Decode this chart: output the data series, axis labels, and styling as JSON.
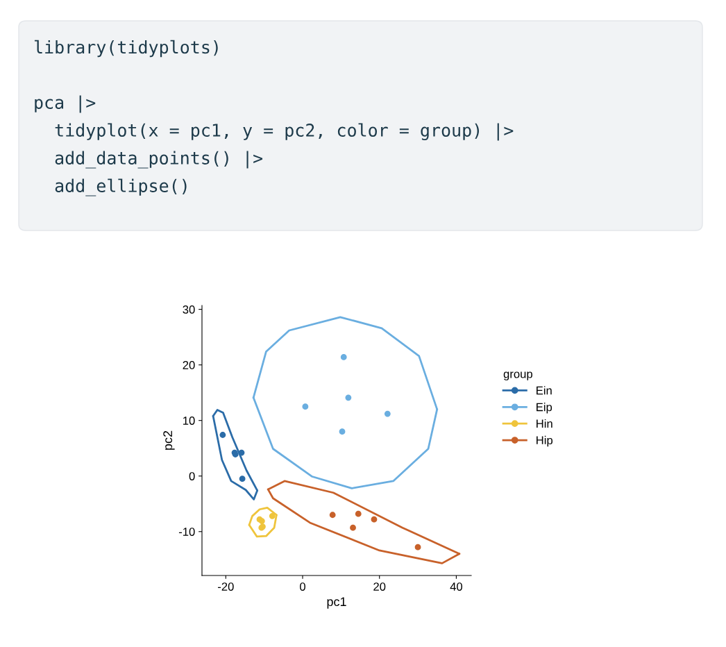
{
  "chart_data": {
    "type": "scatter",
    "xlabel": "pc1",
    "ylabel": "pc2",
    "legend_title": "group",
    "legend": "right",
    "grid": false,
    "marker": "circle",
    "xlim": [
      -26.2,
      43.9
    ],
    "ylim": [
      -17.9,
      30.7
    ],
    "xticks": [
      -20,
      0,
      20,
      40
    ],
    "yticks": [
      -10,
      0,
      10,
      20,
      30
    ],
    "annotations": [
      "library(tidyplots)",
      "pca |>",
      "  tidyplot(x = pc1, y = pc2, color = group) |>",
      "  add_data_points() |>",
      "  add_ellipse()"
    ],
    "series": [
      {
        "name": "Ein",
        "color": "#2b6ca8",
        "x": [
          -20.8,
          -17.7,
          -17.5,
          -15.9,
          -15.7
        ],
        "values": [
          7.4,
          4.2,
          3.9,
          4.2,
          -0.5
        ]
      },
      {
        "name": "Eip",
        "color": "#6aaee0",
        "x": [
          10.7,
          0.7,
          11.9,
          22.1,
          10.3
        ],
        "values": [
          21.4,
          12.5,
          14.1,
          11.2,
          8.0
        ]
      },
      {
        "name": "Hin",
        "color": "#efc43c",
        "x": [
          -11.2,
          -10.6,
          -7.9,
          -10.4,
          -10.7
        ],
        "values": [
          -7.8,
          -8.1,
          -7.2,
          -9.1,
          -9.3
        ]
      },
      {
        "name": "Hip",
        "color": "#c8612a",
        "x": [
          7.8,
          14.5,
          18.6,
          13.1,
          30.0
        ],
        "values": [
          -7.0,
          -6.8,
          -7.8,
          -9.3,
          -12.8
        ]
      },
      {
        "type": "line",
        "marker": "none",
        "color": "#2b6ca8",
        "x": [
          -23.3,
          -22.2,
          -20.7,
          -18.3,
          -14.6,
          -11.8
        ],
        "values": [
          10.8,
          11.9,
          11.4,
          7.0,
          1.0,
          -2.6
        ]
      },
      {
        "type": "line",
        "marker": "none",
        "color": "#2b6ca8",
        "x": [
          -23.3,
          -21.0,
          -18.6,
          -14.8,
          -12.7,
          -11.8
        ],
        "values": [
          10.8,
          2.9,
          -0.9,
          -2.5,
          -4.2,
          -2.6
        ]
      },
      {
        "type": "line",
        "marker": "none",
        "color": "#6aaee0",
        "x": [
          -12.8,
          -9.5,
          -3.5,
          9.8,
          20.6,
          30.3,
          35.0
        ],
        "values": [
          14.1,
          22.4,
          26.2,
          28.6,
          26.6,
          21.6,
          12.0
        ]
      },
      {
        "type": "line",
        "marker": "none",
        "color": "#6aaee0",
        "x": [
          -12.8,
          -7.7,
          2.5,
          12.8,
          23.6,
          32.7,
          35.0
        ],
        "values": [
          14.1,
          4.9,
          -0.1,
          -2.2,
          -0.9,
          4.9,
          12.0
        ]
      },
      {
        "type": "line",
        "marker": "none",
        "color": "#efc43c",
        "x": [
          -13.9,
          -13.1,
          -11.2,
          -9.2,
          -6.8
        ],
        "values": [
          -8.8,
          -7.2,
          -6.0,
          -5.7,
          -7.0
        ]
      },
      {
        "type": "line",
        "marker": "none",
        "color": "#efc43c",
        "x": [
          -13.9,
          -11.9,
          -9.5,
          -7.4,
          -6.8
        ],
        "values": [
          -8.8,
          -10.9,
          -10.8,
          -9.3,
          -7.0
        ]
      },
      {
        "type": "line",
        "marker": "none",
        "color": "#c8612a",
        "x": [
          -9.0,
          -4.7,
          8.0,
          26.0,
          40.8
        ],
        "values": [
          -2.4,
          -0.9,
          -3.0,
          -9.3,
          -14.0
        ]
      },
      {
        "type": "line",
        "marker": "none",
        "color": "#c8612a",
        "x": [
          -9.0,
          -7.7,
          1.9,
          20.0,
          36.3,
          40.8
        ],
        "values": [
          -2.4,
          -4.0,
          -8.4,
          -13.4,
          -15.7,
          -14.0
        ]
      }
    ]
  }
}
